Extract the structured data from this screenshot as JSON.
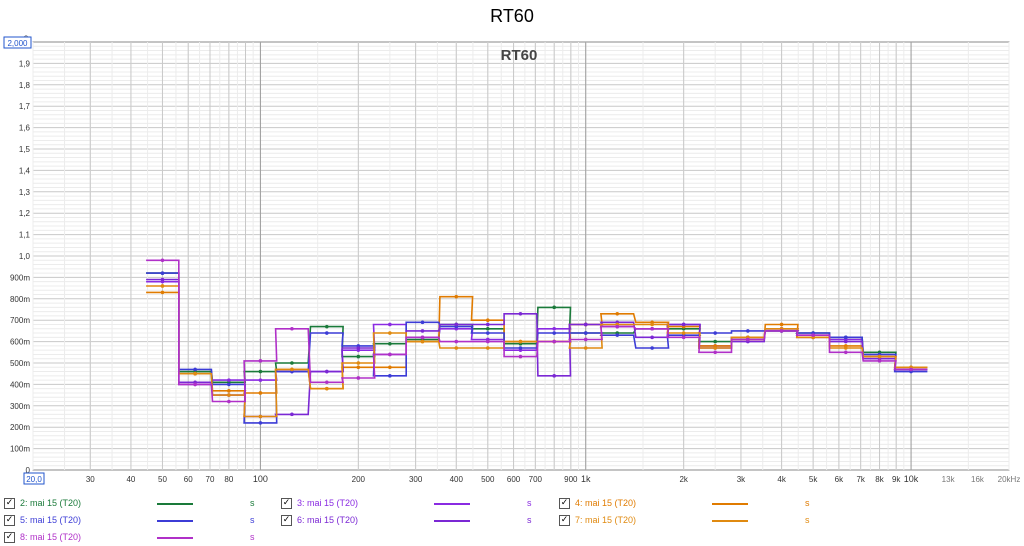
{
  "chart_data": {
    "type": "line",
    "title": "RT60",
    "plot_title": "RT60",
    "ylabel": "s",
    "xlabel": "",
    "x_scale": "log",
    "xlim": [
      20,
      20000
    ],
    "ylim": [
      0,
      2.0
    ],
    "y_ticks": [
      {
        "v": 0,
        "label": "0"
      },
      {
        "v": 0.1,
        "label": "100m"
      },
      {
        "v": 0.2,
        "label": "200m"
      },
      {
        "v": 0.3,
        "label": "300m"
      },
      {
        "v": 0.4,
        "label": "400m"
      },
      {
        "v": 0.5,
        "label": "500m"
      },
      {
        "v": 0.6,
        "label": "600m"
      },
      {
        "v": 0.7,
        "label": "700m"
      },
      {
        "v": 0.8,
        "label": "800m"
      },
      {
        "v": 0.9,
        "label": "900m"
      },
      {
        "v": 1.0,
        "label": "1,0"
      },
      {
        "v": 1.1,
        "label": "1,1"
      },
      {
        "v": 1.2,
        "label": "1,2"
      },
      {
        "v": 1.3,
        "label": "1,3"
      },
      {
        "v": 1.4,
        "label": "1,4"
      },
      {
        "v": 1.5,
        "label": "1,5"
      },
      {
        "v": 1.6,
        "label": "1,6"
      },
      {
        "v": 1.7,
        "label": "1,7"
      },
      {
        "v": 1.8,
        "label": "1,8"
      },
      {
        "v": 1.9,
        "label": "1,9"
      }
    ],
    "y_max_box": "2,000",
    "x_min_box": "20,0",
    "x_ticks": [
      {
        "v": 30,
        "label": "30"
      },
      {
        "v": 40,
        "label": "40"
      },
      {
        "v": 50,
        "label": "50"
      },
      {
        "v": 60,
        "label": "60"
      },
      {
        "v": 70,
        "label": "70"
      },
      {
        "v": 80,
        "label": "80"
      },
      {
        "v": 100,
        "label": "100"
      },
      {
        "v": 200,
        "label": "200"
      },
      {
        "v": 300,
        "label": "300"
      },
      {
        "v": 400,
        "label": "400"
      },
      {
        "v": 500,
        "label": "500"
      },
      {
        "v": 600,
        "label": "600"
      },
      {
        "v": 700,
        "label": "700"
      },
      {
        "v": 900,
        "label": "900"
      },
      {
        "v": 1000,
        "label": "1k"
      },
      {
        "v": 2000,
        "label": "2k"
      },
      {
        "v": 3000,
        "label": "3k"
      },
      {
        "v": 4000,
        "label": "4k"
      },
      {
        "v": 5000,
        "label": "5k"
      },
      {
        "v": 6000,
        "label": "6k"
      },
      {
        "v": 7000,
        "label": "7k"
      },
      {
        "v": 8000,
        "label": "8k"
      },
      {
        "v": 9000,
        "label": "9k"
      },
      {
        "v": 10000,
        "label": "10k"
      },
      {
        "v": 13000,
        "label": "13k"
      },
      {
        "v": 16000,
        "label": "16k"
      },
      {
        "v": 20000,
        "label": "20kHz"
      }
    ],
    "bands": [
      50,
      63,
      80,
      100,
      125,
      160,
      200,
      250,
      315,
      400,
      500,
      630,
      800,
      1000,
      1250,
      1600,
      2000,
      2500,
      3150,
      4000,
      5000,
      6300,
      8000,
      10000
    ],
    "series": [
      {
        "name": "2: mai 15 (T20)",
        "color": "#1a7a3a",
        "values": [
          0.92,
          0.46,
          0.41,
          0.46,
          0.5,
          0.67,
          0.53,
          0.59,
          0.61,
          0.68,
          0.66,
          0.59,
          0.76,
          0.64,
          0.64,
          0.66,
          0.66,
          0.6,
          0.62,
          0.65,
          0.64,
          0.62,
          0.55,
          0.47
        ]
      },
      {
        "name": "3: mai 15 (T20)",
        "color": "#8a2be2",
        "values": [
          0.88,
          0.4,
          0.42,
          0.42,
          0.46,
          0.46,
          0.56,
          0.68,
          0.62,
          0.66,
          0.61,
          0.56,
          0.66,
          0.68,
          0.67,
          0.66,
          0.68,
          0.58,
          0.62,
          0.66,
          0.62,
          0.61,
          0.53,
          0.47
        ]
      },
      {
        "name": "4: mai 15 (T20)",
        "color": "#e07b00",
        "values": [
          0.83,
          0.45,
          0.37,
          0.36,
          0.47,
          0.38,
          0.48,
          0.48,
          0.6,
          0.81,
          0.7,
          0.6,
          0.6,
          0.68,
          0.73,
          0.69,
          0.67,
          0.58,
          0.61,
          0.68,
          0.62,
          0.58,
          0.53,
          0.48
        ]
      },
      {
        "name": "5: mai 15 (T20)",
        "color": "#3c3cd6",
        "values": [
          0.92,
          0.47,
          0.4,
          0.22,
          0.46,
          0.64,
          0.58,
          0.44,
          0.69,
          0.67,
          0.64,
          0.57,
          0.64,
          0.64,
          0.63,
          0.57,
          0.63,
          0.64,
          0.65,
          0.65,
          0.64,
          0.62,
          0.54,
          0.46
        ]
      },
      {
        "name": "6: mai 15 (T20)",
        "color": "#7b28d4",
        "values": [
          0.89,
          0.41,
          0.35,
          0.25,
          0.26,
          0.46,
          0.57,
          0.54,
          0.65,
          0.68,
          0.68,
          0.73,
          0.44,
          0.68,
          0.69,
          0.62,
          0.68,
          0.57,
          0.6,
          0.66,
          0.63,
          0.6,
          0.52,
          0.47
        ]
      },
      {
        "name": "7: mai 15 (T20)",
        "color": "#e08a10",
        "values": [
          0.86,
          0.45,
          0.35,
          0.25,
          0.47,
          0.38,
          0.5,
          0.64,
          0.6,
          0.57,
          0.57,
          0.6,
          0.6,
          0.57,
          0.68,
          0.68,
          0.64,
          0.57,
          0.62,
          0.66,
          0.62,
          0.57,
          0.53,
          0.48
        ]
      },
      {
        "name": "8: mai 15 (T20)",
        "color": "#b030c8",
        "values": [
          0.98,
          0.4,
          0.32,
          0.51,
          0.66,
          0.41,
          0.43,
          0.54,
          0.62,
          0.6,
          0.6,
          0.53,
          0.6,
          0.61,
          0.67,
          0.66,
          0.62,
          0.55,
          0.61,
          0.65,
          0.63,
          0.55,
          0.51,
          0.47
        ]
      }
    ],
    "legend": [
      {
        "label": "2: mai 15 (T20)",
        "color": "#1a7a3a",
        "unit": "s",
        "checked": "✓"
      },
      {
        "label": "3: mai 15 (T20)",
        "color": "#8a2be2",
        "unit": "s",
        "checked": "✓"
      },
      {
        "label": "4: mai 15 (T20)",
        "color": "#e07b00",
        "unit": "s",
        "checked": "✓"
      },
      {
        "label": "5: mai 15 (T20)",
        "color": "#3c3cd6",
        "unit": "s",
        "checked": "✓"
      },
      {
        "label": "6: mai 15 (T20)",
        "color": "#7b28d4",
        "unit": "s",
        "checked": "✓"
      },
      {
        "label": "7: mai 15 (T20)",
        "color": "#e08a10",
        "unit": "s",
        "checked": "✓"
      },
      {
        "label": "8: mai 15 (T20)",
        "color": "#b030c8",
        "unit": "s",
        "checked": "✓"
      }
    ]
  }
}
